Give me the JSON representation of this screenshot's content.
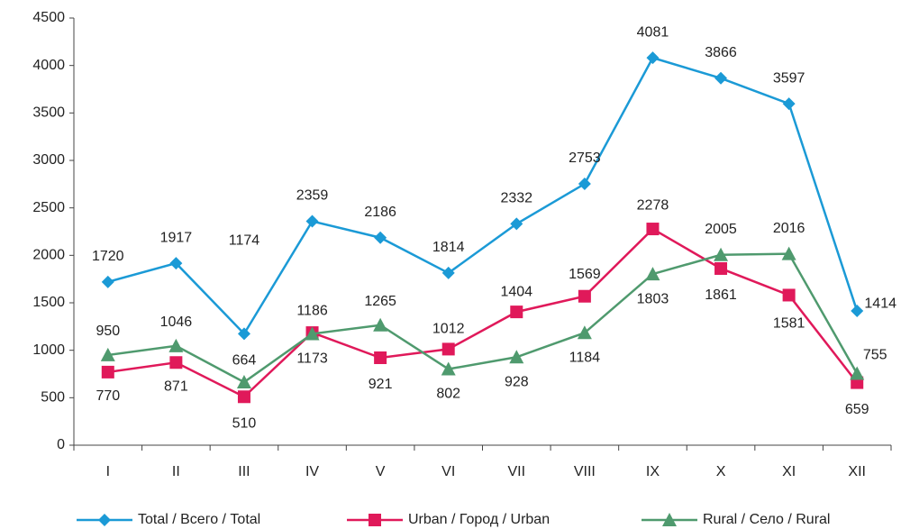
{
  "chart_data": {
    "type": "line",
    "categories": [
      "I",
      "II",
      "III",
      "IV",
      "V",
      "VI",
      "VII",
      "VIII",
      "IX",
      "X",
      "XI",
      "XII"
    ],
    "series": [
      {
        "name": "Total / Всего / Total",
        "color": "#1b9ad6",
        "marker": "diamond",
        "values": [
          1720,
          1917,
          1174,
          2359,
          2186,
          1814,
          2332,
          2753,
          4081,
          3866,
          3597,
          1414
        ]
      },
      {
        "name": "Urban / Город / Urban",
        "color": "#e0195a",
        "marker": "square",
        "values": [
          770,
          871,
          510,
          1186,
          921,
          1012,
          1404,
          1569,
          2278,
          1861,
          1581,
          659
        ]
      },
      {
        "name": "Rural / Село / Rural",
        "color": "#4f9a6e",
        "marker": "triangle",
        "values": [
          950,
          1046,
          664,
          1173,
          1265,
          802,
          928,
          1184,
          1803,
          2005,
          2016,
          755
        ]
      }
    ],
    "ylim": [
      0,
      4500
    ],
    "yticks": [
      0,
      500,
      1000,
      1500,
      2000,
      2500,
      3000,
      3500,
      4000,
      4500
    ],
    "grid": false,
    "legend": "bottom"
  }
}
